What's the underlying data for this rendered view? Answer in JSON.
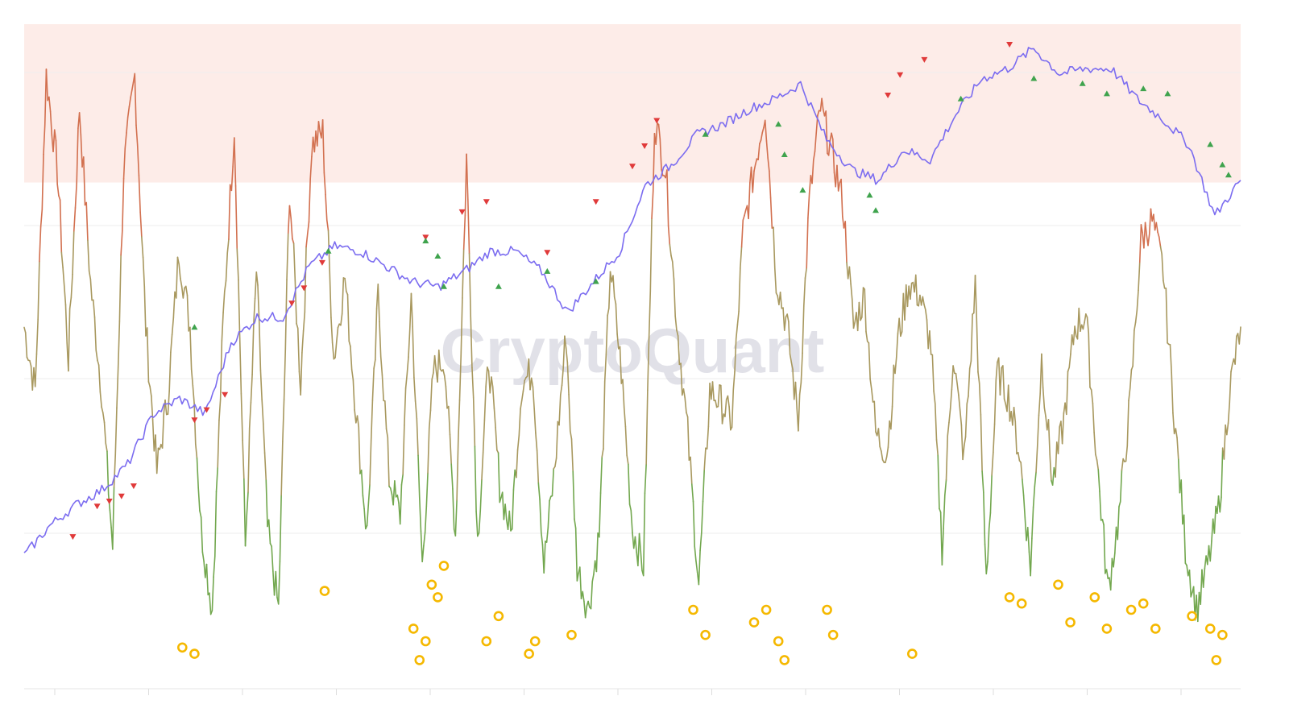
{
  "watermark": "CryptoQuant",
  "colors": {
    "background": "#ffffff",
    "overheated_zone": "#fdece8",
    "price_line": "#7b6cf0",
    "indicator_high": "#d2704f",
    "indicator_mid": "#a8985e",
    "indicator_low": "#72a74e",
    "sell_marker": "#e03a3a",
    "buy_marker": "#3fa34d",
    "bottom_marker": "#f5b800",
    "gridline": "#eeeeee",
    "axis": "#e6e6e6"
  },
  "chart_data": {
    "type": "line",
    "title": "",
    "xlabel": "",
    "ylabel": "",
    "x_tick_labels_shown": false,
    "y_tick_labels_shown": false,
    "x_tick_count": 13,
    "grid": true,
    "overheated_zone": {
      "indicator_from": 0.78,
      "indicator_to": 1.0
    },
    "series": [
      {
        "role": "price",
        "values": [
          0.0,
          0.06,
          0.1,
          0.13,
          0.18,
          0.28,
          0.31,
          0.28,
          0.42,
          0.47,
          0.47,
          0.57,
          0.61,
          0.6,
          0.57,
          0.54,
          0.53,
          0.56,
          0.6,
          0.6,
          0.56,
          0.48,
          0.54,
          0.6,
          0.73,
          0.77,
          0.83,
          0.85,
          0.88,
          0.9,
          0.93,
          0.82,
          0.76,
          0.74,
          0.8,
          0.78,
          0.87,
          0.94,
          0.96,
          1.0,
          0.95,
          0.96,
          0.96,
          0.9,
          0.86,
          0.81,
          0.67,
          0.74
        ]
      },
      {
        "role": "indicator",
        "values": [
          0.55,
          0.45,
          0.95,
          0.8,
          0.5,
          0.9,
          0.62,
          0.45,
          0.2,
          0.8,
          0.95,
          0.55,
          0.32,
          0.44,
          0.67,
          0.55,
          0.23,
          0.1,
          0.56,
          0.87,
          0.2,
          0.64,
          0.23,
          0.1,
          0.77,
          0.46,
          0.84,
          0.86,
          0.5,
          0.63,
          0.42,
          0.22,
          0.6,
          0.31,
          0.25,
          0.6,
          0.17,
          0.48,
          0.5,
          0.22,
          0.82,
          0.21,
          0.5,
          0.3,
          0.22,
          0.46,
          0.48,
          0.17,
          0.33,
          0.54,
          0.17,
          0.1,
          0.22,
          0.65,
          0.48,
          0.23,
          0.17,
          0.88,
          0.8,
          0.56,
          0.38,
          0.14,
          0.45,
          0.43,
          0.4,
          0.7,
          0.8,
          0.9,
          0.63,
          0.55,
          0.4,
          0.75,
          0.9,
          0.83,
          0.75,
          0.55,
          0.6,
          0.38,
          0.35,
          0.53,
          0.62,
          0.6,
          0.52,
          0.2,
          0.51,
          0.34,
          0.62,
          0.15,
          0.48,
          0.44,
          0.35,
          0.17,
          0.5,
          0.3,
          0.4,
          0.55,
          0.57,
          0.34,
          0.13,
          0.25,
          0.43,
          0.69,
          0.72,
          0.64,
          0.41,
          0.2,
          0.1,
          0.17,
          0.26,
          0.45,
          0.55
        ]
      }
    ],
    "markers": {
      "sell": [
        [
          0.04,
          0.03
        ],
        [
          0.06,
          0.09
        ],
        [
          0.07,
          0.1
        ],
        [
          0.08,
          0.11
        ],
        [
          0.09,
          0.13
        ],
        [
          0.14,
          0.26
        ],
        [
          0.15,
          0.28
        ],
        [
          0.165,
          0.31
        ],
        [
          0.22,
          0.49
        ],
        [
          0.23,
          0.52
        ],
        [
          0.245,
          0.57
        ],
        [
          0.33,
          0.62
        ],
        [
          0.36,
          0.67
        ],
        [
          0.38,
          0.69
        ],
        [
          0.43,
          0.59
        ],
        [
          0.47,
          0.69
        ],
        [
          0.5,
          0.76
        ],
        [
          0.51,
          0.8
        ],
        [
          0.52,
          0.85
        ],
        [
          0.71,
          0.9
        ],
        [
          0.72,
          0.94
        ],
        [
          0.74,
          0.97
        ],
        [
          0.81,
          1.0
        ]
      ],
      "buy": [
        [
          0.14,
          0.46
        ],
        [
          0.25,
          0.61
        ],
        [
          0.33,
          0.63
        ],
        [
          0.34,
          0.6
        ],
        [
          0.345,
          0.54
        ],
        [
          0.39,
          0.54
        ],
        [
          0.43,
          0.57
        ],
        [
          0.47,
          0.55
        ],
        [
          0.56,
          0.84
        ],
        [
          0.62,
          0.86
        ],
        [
          0.625,
          0.8
        ],
        [
          0.64,
          0.73
        ],
        [
          0.695,
          0.72
        ],
        [
          0.7,
          0.69
        ],
        [
          0.77,
          0.91
        ],
        [
          0.83,
          0.95
        ],
        [
          0.87,
          0.94
        ],
        [
          0.89,
          0.92
        ],
        [
          0.92,
          0.93
        ],
        [
          0.94,
          0.92
        ],
        [
          0.975,
          0.82
        ],
        [
          0.985,
          0.78
        ],
        [
          0.99,
          0.76
        ]
      ],
      "bottom": [
        [
          0.13,
          0.04
        ],
        [
          0.14,
          0.03
        ],
        [
          0.247,
          0.13
        ],
        [
          0.32,
          0.07
        ],
        [
          0.325,
          0.02
        ],
        [
          0.33,
          0.05
        ],
        [
          0.335,
          0.14
        ],
        [
          0.34,
          0.12
        ],
        [
          0.345,
          0.17
        ],
        [
          0.38,
          0.05
        ],
        [
          0.39,
          0.09
        ],
        [
          0.415,
          0.03
        ],
        [
          0.42,
          0.05
        ],
        [
          0.45,
          0.06
        ],
        [
          0.55,
          0.1
        ],
        [
          0.56,
          0.06
        ],
        [
          0.6,
          0.08
        ],
        [
          0.61,
          0.1
        ],
        [
          0.62,
          0.05
        ],
        [
          0.625,
          0.02
        ],
        [
          0.66,
          0.1
        ],
        [
          0.665,
          0.06
        ],
        [
          0.73,
          0.03
        ],
        [
          0.81,
          0.12
        ],
        [
          0.82,
          0.11
        ],
        [
          0.85,
          0.14
        ],
        [
          0.86,
          0.08
        ],
        [
          0.88,
          0.12
        ],
        [
          0.89,
          0.07
        ],
        [
          0.91,
          0.1
        ],
        [
          0.92,
          0.11
        ],
        [
          0.93,
          0.07
        ],
        [
          0.96,
          0.09
        ],
        [
          0.975,
          0.07
        ],
        [
          0.98,
          0.02
        ],
        [
          0.985,
          0.06
        ]
      ]
    }
  }
}
